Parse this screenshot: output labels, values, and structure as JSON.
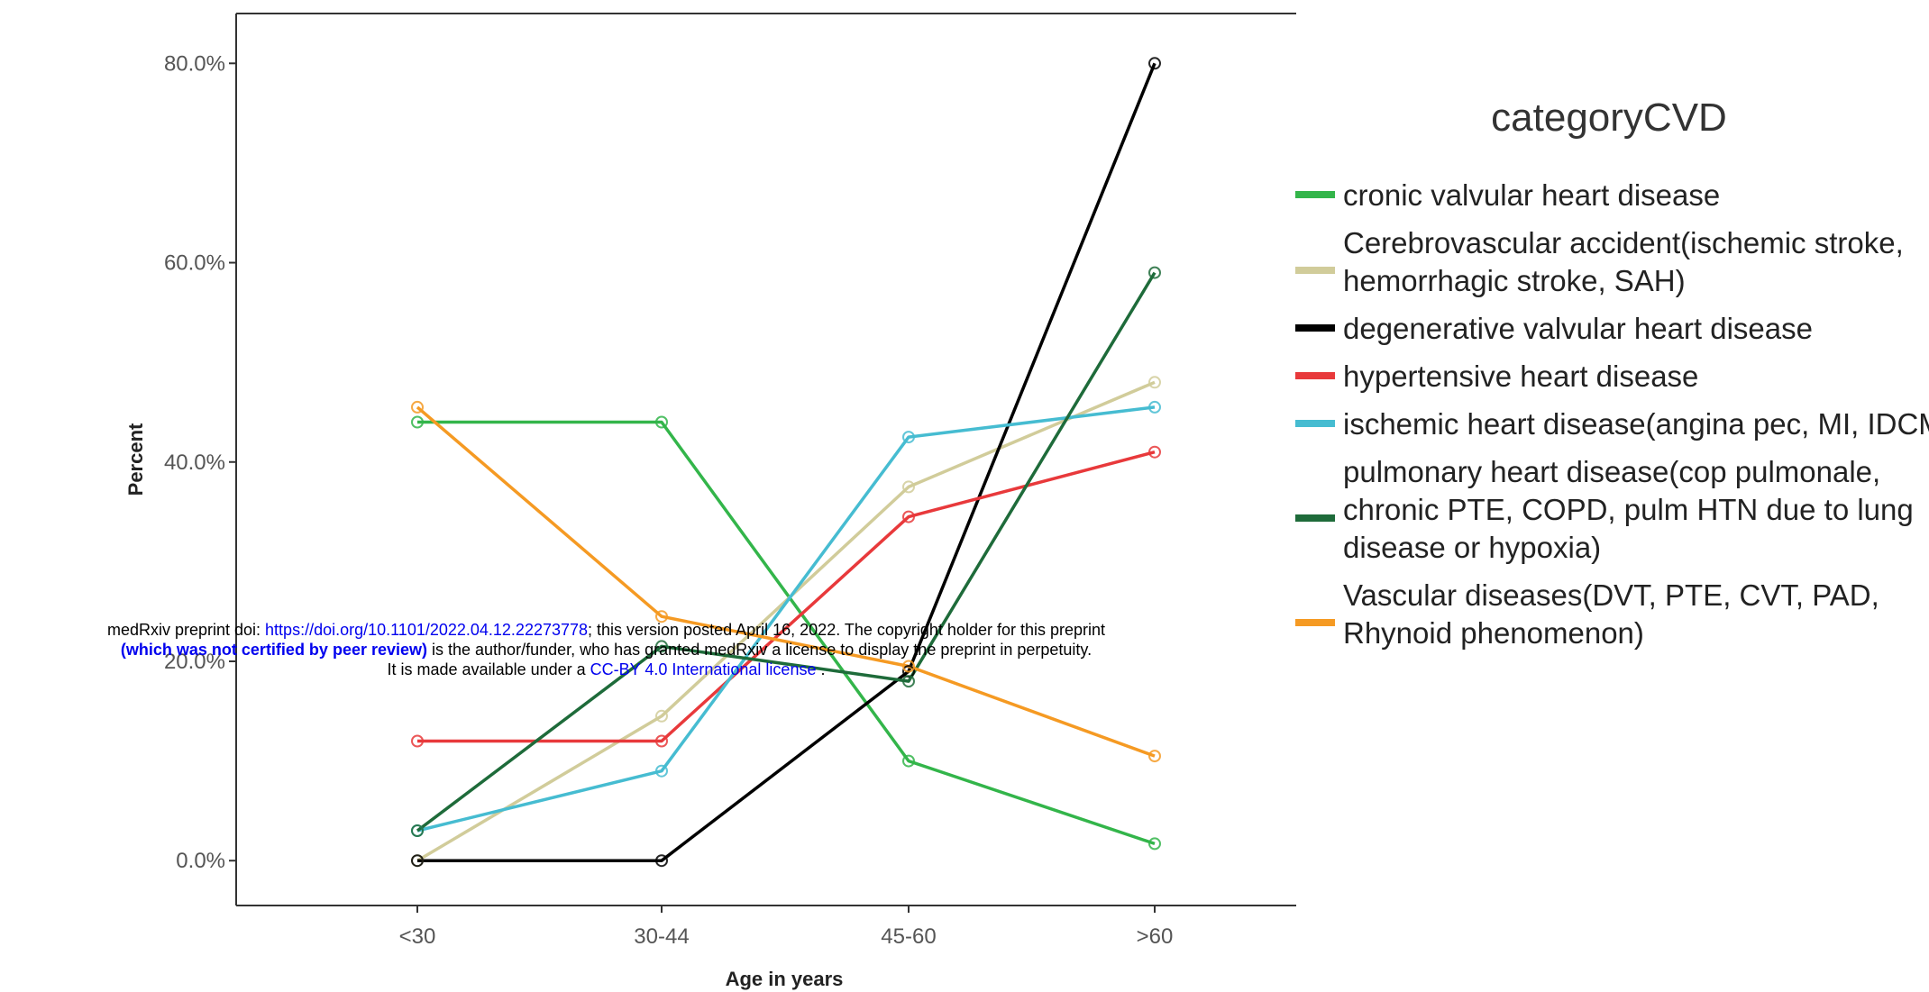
{
  "chart_data": {
    "type": "line",
    "xlabel": "Age in years",
    "ylabel": "Percent",
    "categories": [
      "<30",
      "30-44",
      "45-60",
      ">60"
    ],
    "yticks": [
      "0.0%",
      "20.0%",
      "40.0%",
      "60.0%",
      "80.0%"
    ],
    "ylim": [
      -4.5,
      85
    ],
    "grid": false,
    "legend": {
      "title": "categoryCVD",
      "placement": "right"
    },
    "series": [
      {
        "name": "cronic valvular heart disease",
        "color": "#33b54a",
        "values": [
          44,
          44,
          10,
          1.7
        ]
      },
      {
        "name": "Cerebrovascular accident(ischemic stroke, hemorrhagic stroke, SAH)",
        "color": "#d1cc9a",
        "values": [
          0,
          14.5,
          37.5,
          48
        ]
      },
      {
        "name": "degenerative valvular heart disease",
        "color": "#000000",
        "values": [
          0,
          0,
          19,
          80
        ]
      },
      {
        "name": "hypertensive heart disease",
        "color": "#e8393b",
        "values": [
          12,
          12,
          34.5,
          41
        ]
      },
      {
        "name": "ischemic heart disease(angina pec, MI, IDCMP)",
        "color": "#46bcd1",
        "values": [
          3,
          9,
          42.5,
          45.5
        ]
      },
      {
        "name": "pulmonary heart disease(cop pulmonale, chronic PTE, COPD, pulm HTN due to lung disease or hypoxia)",
        "color": "#1e6b3a",
        "values": [
          3,
          21.5,
          18,
          59
        ]
      },
      {
        "name": "Vascular diseases(DVT, PTE, CVT, PAD, Rhynoid phenomenon)",
        "color": "#f59a23",
        "values": [
          45.5,
          24.5,
          19.5,
          10.5
        ]
      }
    ],
    "legend_lines": [
      [
        "cronic valvular heart disease"
      ],
      [
        "Cerebrovascular accident(ischemic stroke,",
        "hemorrhagic stroke, SAH)"
      ],
      [
        "degenerative valvular heart disease"
      ],
      [
        "hypertensive heart disease"
      ],
      [
        "ischemic heart disease(angina pec, MI, IDCMP)"
      ],
      [
        "pulmonary heart disease(cop pulmonale,",
        "chronic PTE, COPD, pulm HTN due to lung",
        "disease or hypoxia)"
      ],
      [
        "Vascular diseases(DVT, PTE, CVT, PAD,",
        "Rhynoid phenomenon)"
      ]
    ]
  },
  "preprint_notice": {
    "line1_prefix": "medRxiv preprint doi: ",
    "doi_link": "https://doi.org/10.1101/2022.04.12.22273778",
    "line1_suffix": "; this version posted April 16, 2022. The copyright holder for this preprint",
    "line2_bold": "(which was not certified by peer review)",
    "line2_rest": " is the author/funder, who has granted medRxiv a license to display the preprint in perpetuity.",
    "line3_prefix": "It is made available under a ",
    "license_link": "CC-BY 4.0 International license",
    "line3_suffix": " ."
  }
}
